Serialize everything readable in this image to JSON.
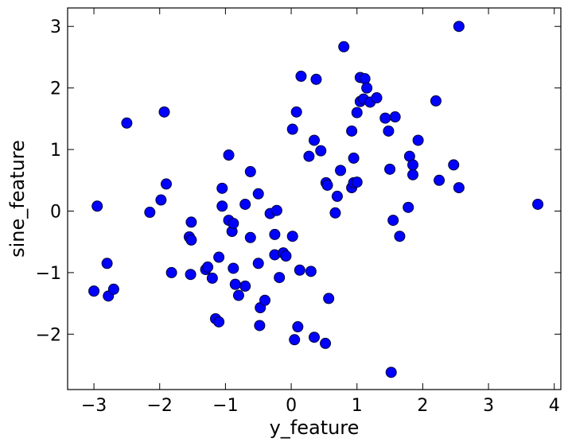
{
  "chart_data": {
    "type": "scatter",
    "title": "",
    "xlabel": "y_feature",
    "ylabel": "sine_feature",
    "xlim": [
      -3.4,
      4.1
    ],
    "ylim": [
      -2.9,
      3.3
    ],
    "xticks": [
      -3,
      -2,
      -1,
      0,
      1,
      2,
      3,
      4
    ],
    "yticks": [
      -2,
      -1,
      0,
      1,
      2,
      3
    ],
    "xtick_labels": [
      "−3",
      "−2",
      "−1",
      "0",
      "1",
      "2",
      "3",
      "4"
    ],
    "ytick_labels": [
      "−2",
      "−1",
      "0",
      "1",
      "2",
      "3"
    ],
    "grid": false,
    "legend": "none",
    "marker_color": "#0000ff",
    "series": [
      {
        "points": [
          [
            -3.0,
            -1.3
          ],
          [
            -2.95,
            0.08
          ],
          [
            -2.8,
            -0.85
          ],
          [
            -2.78,
            -1.38
          ],
          [
            -2.7,
            -1.27
          ],
          [
            -2.5,
            1.43
          ],
          [
            -2.15,
            -0.02
          ],
          [
            -1.98,
            0.18
          ],
          [
            -1.93,
            1.61
          ],
          [
            -1.9,
            0.44
          ],
          [
            -1.82,
            -1.0
          ],
          [
            -1.55,
            -0.42
          ],
          [
            -1.52,
            -0.47
          ],
          [
            -1.52,
            -0.18
          ],
          [
            -1.53,
            -1.03
          ],
          [
            -1.3,
            -0.95
          ],
          [
            -1.27,
            -0.91
          ],
          [
            -1.2,
            -1.09
          ],
          [
            -1.15,
            -1.75
          ],
          [
            -1.1,
            -1.8
          ],
          [
            -1.1,
            -0.75
          ],
          [
            -1.05,
            0.37
          ],
          [
            -1.05,
            0.08
          ],
          [
            -0.95,
            -0.15
          ],
          [
            -0.95,
            0.91
          ],
          [
            -0.9,
            -0.33
          ],
          [
            -0.88,
            -0.2
          ],
          [
            -0.88,
            -0.93
          ],
          [
            -0.85,
            -1.19
          ],
          [
            -0.8,
            -1.37
          ],
          [
            -0.7,
            0.11
          ],
          [
            -0.7,
            -1.22
          ],
          [
            -0.62,
            -0.43
          ],
          [
            -0.62,
            0.64
          ],
          [
            -0.5,
            0.28
          ],
          [
            -0.5,
            -0.85
          ],
          [
            -0.47,
            -1.57
          ],
          [
            -0.48,
            -1.86
          ],
          [
            -0.4,
            -1.45
          ],
          [
            -0.32,
            -0.04
          ],
          [
            -0.25,
            -0.38
          ],
          [
            -0.25,
            -0.71
          ],
          [
            -0.22,
            0.01
          ],
          [
            -0.18,
            -1.08
          ],
          [
            -0.12,
            -0.68
          ],
          [
            -0.08,
            -0.73
          ],
          [
            0.02,
            1.33
          ],
          [
            0.02,
            -0.41
          ],
          [
            0.05,
            -2.09
          ],
          [
            0.08,
            1.61
          ],
          [
            0.1,
            -1.88
          ],
          [
            0.13,
            -0.96
          ],
          [
            0.15,
            2.19
          ],
          [
            0.27,
            0.89
          ],
          [
            0.3,
            -0.98
          ],
          [
            0.35,
            1.15
          ],
          [
            0.35,
            -2.05
          ],
          [
            0.38,
            2.14
          ],
          [
            0.45,
            0.98
          ],
          [
            0.52,
            -2.15
          ],
          [
            0.53,
            0.46
          ],
          [
            0.55,
            0.42
          ],
          [
            0.57,
            -1.42
          ],
          [
            0.67,
            -0.03
          ],
          [
            0.7,
            0.24
          ],
          [
            0.75,
            0.66
          ],
          [
            0.8,
            2.67
          ],
          [
            0.92,
            0.38
          ],
          [
            0.92,
            1.3
          ],
          [
            0.95,
            0.86
          ],
          [
            0.95,
            0.46
          ],
          [
            1.0,
            0.47
          ],
          [
            1.0,
            1.6
          ],
          [
            1.05,
            1.78
          ],
          [
            1.05,
            2.17
          ],
          [
            1.1,
            1.82
          ],
          [
            1.12,
            2.15
          ],
          [
            1.15,
            2.0
          ],
          [
            1.2,
            1.77
          ],
          [
            1.3,
            1.84
          ],
          [
            1.43,
            1.51
          ],
          [
            1.48,
            1.3
          ],
          [
            1.5,
            0.68
          ],
          [
            1.52,
            -2.62
          ],
          [
            1.55,
            -0.15
          ],
          [
            1.58,
            1.53
          ],
          [
            1.65,
            -0.41
          ],
          [
            1.78,
            0.06
          ],
          [
            1.8,
            0.89
          ],
          [
            1.85,
            0.75
          ],
          [
            1.85,
            0.59
          ],
          [
            1.93,
            1.15
          ],
          [
            2.2,
            1.79
          ],
          [
            2.25,
            0.5
          ],
          [
            2.47,
            0.75
          ],
          [
            2.55,
            0.38
          ],
          [
            2.55,
            3.0
          ],
          [
            3.75,
            0.11
          ]
        ]
      }
    ]
  }
}
